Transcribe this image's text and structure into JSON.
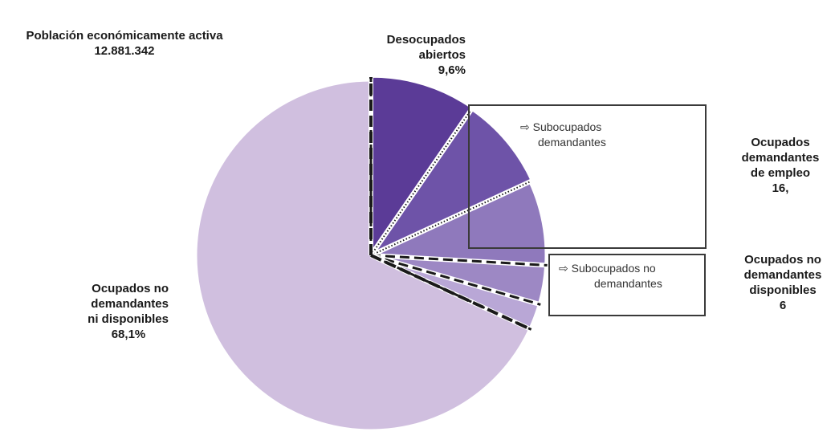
{
  "chart_data": {
    "type": "pie",
    "total": {
      "label": "Población económicamente activa",
      "value": "12.881.342"
    },
    "slices": [
      {
        "name": "Desocupados abiertos",
        "value": 9.6,
        "label": "9,6%",
        "color": "#5b3b97"
      },
      {
        "name": "Ocupados demandantes de empleo (Subocupados demandantes)",
        "value": 8.5,
        "label": "",
        "color": "#6e53a8"
      },
      {
        "name": "Ocupados demandantes de empleo",
        "value": 7.8,
        "label": "",
        "color": "#8f79bc"
      },
      {
        "name": "Ocupados no demandantes disponibles (Subocupados no demandantes)",
        "value": 3.6,
        "label": "",
        "color": "#9d88c4"
      },
      {
        "name": "Ocupados no demandantes disponibles",
        "value": 2.4,
        "label": "",
        "color": "#b9a7d6"
      },
      {
        "name": "Ocupados no demandantes ni disponibles",
        "value": 68.1,
        "label": "68,1%",
        "color": "#d0bfdf"
      }
    ]
  },
  "labels": {
    "pea_title": "Población económicamente activa",
    "pea_value": "12.881.342",
    "desocupados_line1": "Desocupados",
    "desocupados_line2": "abiertos",
    "desocupados_pct": "9,6%",
    "sub_dem_line1": "Subocupados",
    "sub_dem_line2": "demandantes",
    "sub_nodem_line1": "Subocupados no",
    "sub_nodem_line2": "demandantes",
    "ocu_dem_line1": "Ocupados",
    "ocu_dem_line2": "demandantes",
    "ocu_dem_line3": "de empleo",
    "ocu_dem_pct": "16,",
    "ocu_nodem_line1": "Ocupados no",
    "ocu_nodem_line2": "demandantes",
    "ocu_nodem_line3": "disponibles",
    "ocu_nodem_pct": "6",
    "ocu_ni_line1": "Ocupados no",
    "ocu_ni_line2": "demandantes",
    "ocu_ni_line3": "ni disponibles",
    "ocu_ni_pct": "68,1%",
    "arrow_glyph": "⇨"
  }
}
